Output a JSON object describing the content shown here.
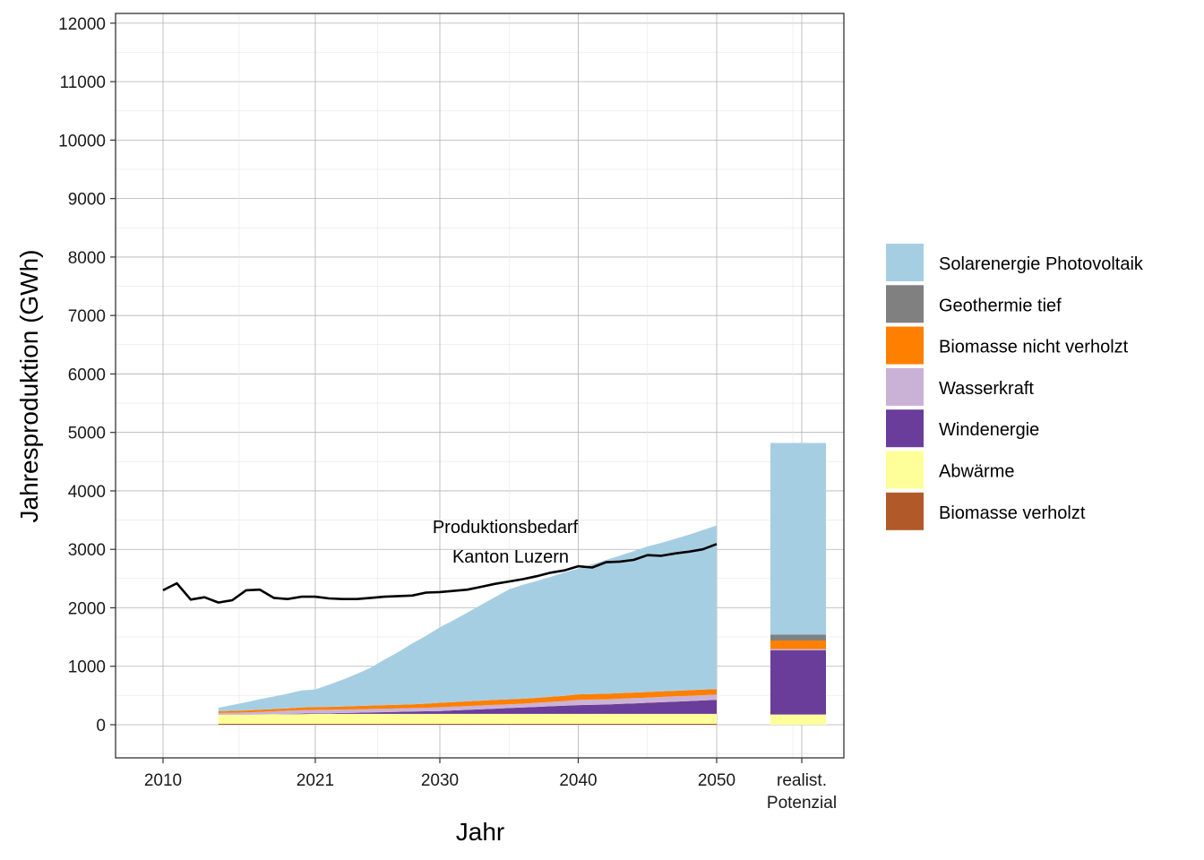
{
  "chart_data": {
    "type": "area",
    "xlabel": "Jahr",
    "ylabel": "Jahresproduktion (GWh)",
    "ylim": [
      -550,
      12250
    ],
    "xlim": [
      2006.5,
      2050
    ],
    "yticks": [
      0,
      1000,
      2000,
      3000,
      4000,
      5000,
      6000,
      7000,
      8000,
      9000,
      10000,
      11000,
      12000
    ],
    "ytick_labels": [
      "0",
      "1000",
      "2000",
      "3000",
      "4000",
      "5000",
      "6000",
      "7000",
      "8000",
      "9000",
      "10000",
      "11000",
      "12000"
    ],
    "xticks": [
      2010,
      2021,
      2030,
      2040,
      2050
    ],
    "xtick_labels": [
      "2010",
      "2021",
      "2030",
      "2040",
      "2050"
    ],
    "potential_tick_label": [
      "realist.",
      "Potenzial"
    ],
    "grid": true,
    "legend_position": "right",
    "x": [
      2014,
      2015,
      2016,
      2017,
      2018,
      2019,
      2020,
      2021,
      2022,
      2023,
      2024,
      2025,
      2026,
      2027,
      2028,
      2029,
      2030,
      2031,
      2032,
      2033,
      2034,
      2035,
      2036,
      2037,
      2038,
      2039,
      2040,
      2041,
      2042,
      2043,
      2044,
      2045,
      2046,
      2047,
      2048,
      2049,
      2050
    ],
    "series": [
      {
        "name": "Biomasse verholzt",
        "color": "#B15928",
        "values": [
          15,
          15,
          15,
          15,
          15,
          15,
          15,
          15,
          15,
          15,
          15,
          15,
          15,
          15,
          15,
          15,
          15,
          15,
          15,
          15,
          15,
          15,
          15,
          15,
          15,
          15,
          15,
          15,
          15,
          15,
          15,
          15,
          15,
          15,
          15,
          15,
          15
        ]
      },
      {
        "name": "Abwärme",
        "color": "#FFFF99",
        "values": [
          155,
          155,
          155,
          160,
          165,
          165,
          165,
          170,
          170,
          170,
          170,
          170,
          170,
          170,
          170,
          170,
          170,
          170,
          170,
          170,
          170,
          170,
          170,
          170,
          170,
          170,
          170,
          170,
          170,
          170,
          170,
          170,
          170,
          170,
          170,
          170,
          170
        ]
      },
      {
        "name": "Windenergie",
        "color": "#6A3D9A",
        "values": [
          0,
          0,
          0,
          0,
          0,
          5,
          10,
          10,
          10,
          15,
          20,
          25,
          30,
          35,
          40,
          45,
          50,
          60,
          70,
          80,
          90,
          100,
          110,
          120,
          130,
          140,
          150,
          155,
          160,
          170,
          180,
          190,
          200,
          210,
          220,
          230,
          240
        ]
      },
      {
        "name": "Wasserkraft",
        "color": "#CAB2D6",
        "values": [
          30,
          35,
          40,
          45,
          50,
          55,
          60,
          60,
          60,
          60,
          60,
          60,
          60,
          60,
          60,
          60,
          65,
          65,
          65,
          65,
          65,
          65,
          65,
          70,
          75,
          80,
          90,
          90,
          90,
          90,
          90,
          90,
          90,
          90,
          90,
          90,
          90
        ]
      },
      {
        "name": "Biomasse nicht verholzt",
        "color": "#FF7F00",
        "values": [
          30,
          32,
          34,
          36,
          38,
          40,
          45,
          48,
          50,
          52,
          55,
          58,
          60,
          62,
          65,
          70,
          75,
          78,
          80,
          82,
          85,
          85,
          85,
          85,
          88,
          90,
          95,
          95,
          95,
          95,
          95,
          95,
          95,
          95,
          95,
          95,
          95
        ]
      },
      {
        "name": "Geothermie tief",
        "color": "#808080",
        "values": [
          0,
          0,
          0,
          0,
          0,
          0,
          0,
          0,
          0,
          0,
          0,
          0,
          0,
          0,
          0,
          0,
          0,
          0,
          0,
          0,
          0,
          0,
          0,
          0,
          0,
          0,
          0,
          0,
          0,
          0,
          0,
          0,
          0,
          0,
          0,
          0,
          0
        ]
      },
      {
        "name": "Solarenergie Photovoltaik",
        "color": "#A6CEE3",
        "values": [
          60,
          100,
          140,
          180,
          215,
          250,
          290,
          300,
          380,
          460,
          550,
          650,
          780,
          900,
          1040,
          1160,
          1290,
          1400,
          1520,
          1640,
          1760,
          1880,
          1950,
          2000,
          2050,
          2110,
          2150,
          2220,
          2290,
          2350,
          2420,
          2490,
          2540,
          2600,
          2660,
          2730,
          2800
        ]
      }
    ],
    "legend_order": [
      "Solarenergie Photovoltaik",
      "Geothermie tief",
      "Biomasse nicht verholzt",
      "Wasserkraft",
      "Windenergie",
      "Abwärme",
      "Biomasse verholzt"
    ],
    "demand_line": {
      "label_lines": [
        "Produktionsbedarf",
        "Kanton Luzern"
      ],
      "x": [
        2010,
        2011,
        2012,
        2013,
        2014,
        2015,
        2016,
        2017,
        2018,
        2019,
        2020,
        2021,
        2022,
        2023,
        2024,
        2025,
        2026,
        2027,
        2028,
        2029,
        2030,
        2031,
        2032,
        2033,
        2034,
        2035,
        2036,
        2037,
        2038,
        2039,
        2040,
        2041,
        2042,
        2043,
        2044,
        2045,
        2046,
        2047,
        2048,
        2049,
        2050
      ],
      "values": [
        2300,
        2420,
        2140,
        2180,
        2090,
        2130,
        2300,
        2310,
        2170,
        2150,
        2190,
        2190,
        2160,
        2150,
        2150,
        2170,
        2190,
        2200,
        2210,
        2260,
        2270,
        2290,
        2310,
        2360,
        2410,
        2450,
        2490,
        2540,
        2600,
        2640,
        2710,
        2690,
        2780,
        2790,
        2820,
        2900,
        2890,
        2930,
        2960,
        3000,
        3090
      ]
    },
    "potential_bar": {
      "label": "realist. Potenzial",
      "stack": [
        {
          "name": "Biomasse verholzt",
          "value": 0
        },
        {
          "name": "Abwärme",
          "value": 175
        },
        {
          "name": "Windenergie",
          "value": 1100
        },
        {
          "name": "Wasserkraft",
          "value": 20
        },
        {
          "name": "Biomasse nicht verholzt",
          "value": 145
        },
        {
          "name": "Geothermie tief",
          "value": 100
        },
        {
          "name": "Solarenergie Photovoltaik",
          "value": 3280
        }
      ]
    }
  }
}
